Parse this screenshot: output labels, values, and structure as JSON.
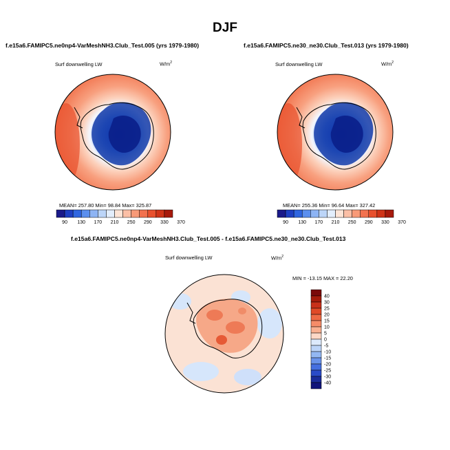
{
  "figure": {
    "title": "DJF"
  },
  "panels": [
    {
      "title": "f.e15a6.FAMIPC5.ne0np4-VarMeshNH3.Club_Test.005 (yrs 1979-1980)",
      "variable": "Surf downwelling LW",
      "units": "W/m",
      "units_exp": "2",
      "stats": {
        "mean_label": "MEAN=",
        "mean": "257.80",
        "min_label": "Min=",
        "min": "98.84",
        "max_label": "Max=",
        "max": "325.87"
      }
    },
    {
      "title": "f.e15a6.FAMIPC5.ne30_ne30.Club_Test.013 (yrs 1979-1980)",
      "variable": "Surf downwelling LW",
      "units": "W/m",
      "units_exp": "2",
      "stats": {
        "mean_label": "MEAN=",
        "mean": "255.36",
        "min_label": "Min=",
        "min": "96.64",
        "max_label": "Max=",
        "max": "327.42"
      }
    }
  ],
  "diff_panel": {
    "title": "f.e15a6.FAMIPC5.ne0np4-VarMeshNH3.Club_Test.005 - f.e15a6.FAMIPC5.ne30_ne30.Club_Test.013",
    "variable": "Surf downwelling LW",
    "units": "W/m",
    "units_exp": "2",
    "minmax": "MIN = -13.15 MAX =  22.20"
  },
  "colorbar_abs": {
    "labels": [
      "90",
      "130",
      "170",
      "210",
      "250",
      "290",
      "330",
      "370"
    ],
    "colors": [
      "#1a1a8a",
      "#1e3fc2",
      "#2f66e0",
      "#5b8fee",
      "#8db4f4",
      "#bcd5f8",
      "#e3eefc",
      "#fde4d6",
      "#fbbfa6",
      "#f89a78",
      "#f2724f",
      "#e8512e",
      "#cf3418",
      "#a71a0c"
    ]
  },
  "colorbar_diff": {
    "labels": [
      "40",
      "30",
      "25",
      "20",
      "15",
      "10",
      "5",
      "0",
      "-5",
      "-10",
      "-15",
      "-20",
      "-25",
      "-30",
      "-40"
    ],
    "colors": [
      "#7a0a0a",
      "#a51c0c",
      "#c8301a",
      "#e04a28",
      "#ee6a45",
      "#f58c68",
      "#f9b091",
      "#fdd8c6",
      "#ddeafc",
      "#bcd4f8",
      "#93b7f2",
      "#6a93ea",
      "#456fe0",
      "#2a4bc8",
      "#1a2c9a",
      "#10147a"
    ]
  }
}
